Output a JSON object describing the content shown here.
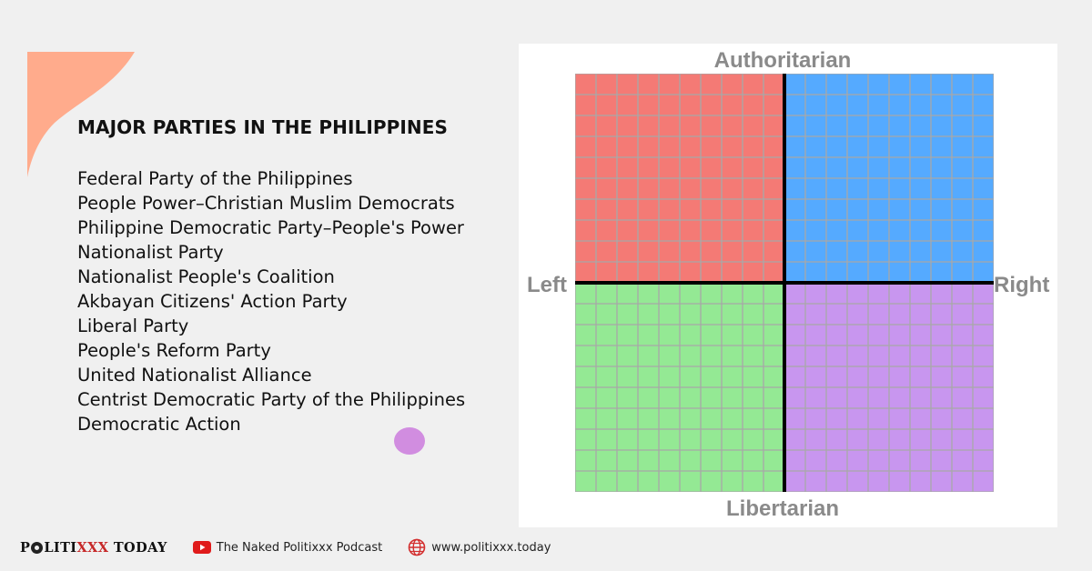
{
  "content": {
    "heading": "MAJOR PARTIES IN THE PHILIPPINES",
    "parties": [
      "Federal Party of the Philippines",
      "People Power–Christian Muslim Democrats",
      "Philippine Democratic Party–People's Power",
      "Nationalist Party",
      "Nationalist People's Coalition",
      "Akbayan Citizens' Action Party",
      "Liberal Party",
      "People's Reform Party",
      "United Nationalist Alliance",
      "Centrist Democratic Party of the Philippines",
      "Democratic Action"
    ]
  },
  "compass": {
    "labels": {
      "top": "Authoritarian",
      "bottom": "Libertarian",
      "left": "Left",
      "right": "Right"
    },
    "quadrant_colors": {
      "top_left": "#f47a75",
      "top_right": "#55aaff",
      "bottom_left": "#94e994",
      "bottom_right": "#c896ef"
    },
    "grid_cells_per_side": 20
  },
  "footer": {
    "brand_prefix": "P",
    "brand_mid": "LITI",
    "brand_xxx": "XXX",
    "brand_suffix": " TODAY",
    "podcast": "The Naked Politixxx Podcast",
    "website": "www.politixxx.today"
  },
  "colors": {
    "background": "#f0f0f0",
    "accent_peach": "#ffab8c",
    "dot_purple": "#d18de0",
    "brand_red": "#c62828"
  }
}
